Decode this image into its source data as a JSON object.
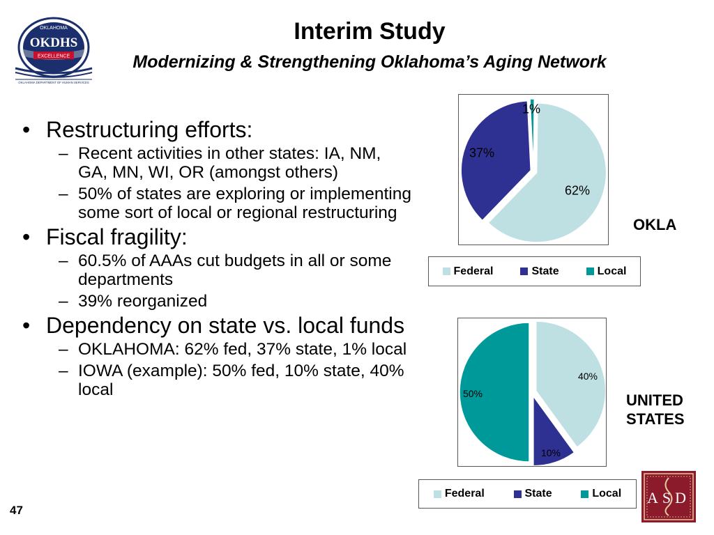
{
  "header": {
    "title": "Interim Study",
    "subtitle": "Modernizing & Strengthening Oklahoma’s Aging Network"
  },
  "logo": {
    "top_text": "OKLAHOMA",
    "brand": "OKDHS",
    "ribbon": "EXCELLENCE",
    "footer": "OKLAHOMA DEPARTMENT OF HUMAN SERVICES"
  },
  "asd_logo": {
    "text": "ASD"
  },
  "bullets": [
    {
      "text": "Restructuring efforts:",
      "subs": [
        "Recent activities in other states:  IA, NM, GA, MN, WI, OR (amongst others)",
        "50% of states are exploring or implementing some sort of local or regional restructuring"
      ]
    },
    {
      "text": "Fiscal fragility:",
      "subs": [
        "60.5% of AAAs cut budgets in all or some departments",
        "39% reorganized"
      ]
    },
    {
      "text": "Dependency on state vs. local funds",
      "subs": [
        "OKLAHOMA:  62% fed, 37% state, 1% local",
        "IOWA (example):  50% fed, 10% state, 40% local"
      ]
    }
  ],
  "page_number": "47",
  "colors": {
    "federal": "#bfe0e3",
    "state": "#2e3192",
    "local": "#009999"
  },
  "chart_data": [
    {
      "type": "pie",
      "region_label": "OKLA",
      "categories": [
        "Federal",
        "State",
        "Local"
      ],
      "values": [
        62,
        37,
        1
      ],
      "labels": [
        "62%",
        "37%",
        "1%"
      ],
      "legend": [
        "Federal",
        "State",
        "Local"
      ],
      "legend_position": "bottom"
    },
    {
      "type": "pie",
      "region_label": "UNITED STATES",
      "categories": [
        "Federal",
        "State",
        "Local"
      ],
      "values": [
        40,
        10,
        50
      ],
      "labels": [
        "40%",
        "10%",
        "50%"
      ],
      "legend": [
        "Federal",
        "State",
        "Local"
      ],
      "legend_position": "bottom"
    }
  ]
}
